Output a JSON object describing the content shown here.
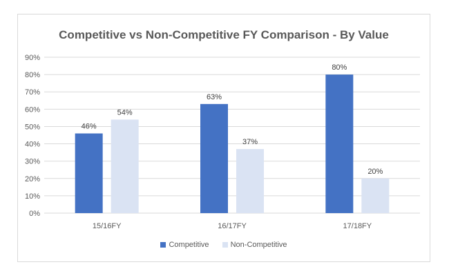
{
  "chart_data": {
    "type": "bar",
    "title": "Competitive vs Non-Competitive FY Comparison - By Value",
    "categories": [
      "15/16FY",
      "16/17FY",
      "17/18FY"
    ],
    "series": [
      {
        "name": "Competitive",
        "values": [
          46,
          63,
          80
        ],
        "labels": [
          "46%",
          "63%",
          "80%"
        ],
        "color": "#4472c4"
      },
      {
        "name": "Non-Competitive",
        "values": [
          54,
          37,
          20
        ],
        "labels": [
          "54%",
          "37%",
          "20%"
        ],
        "color": "#dae3f3"
      }
    ],
    "y_ticks": [
      "0%",
      "10%",
      "20%",
      "30%",
      "40%",
      "50%",
      "60%",
      "70%",
      "80%",
      "90%"
    ],
    "ylim": [
      0,
      90
    ],
    "grid": true,
    "legend_position": "bottom",
    "xlabel": "",
    "ylabel": ""
  }
}
